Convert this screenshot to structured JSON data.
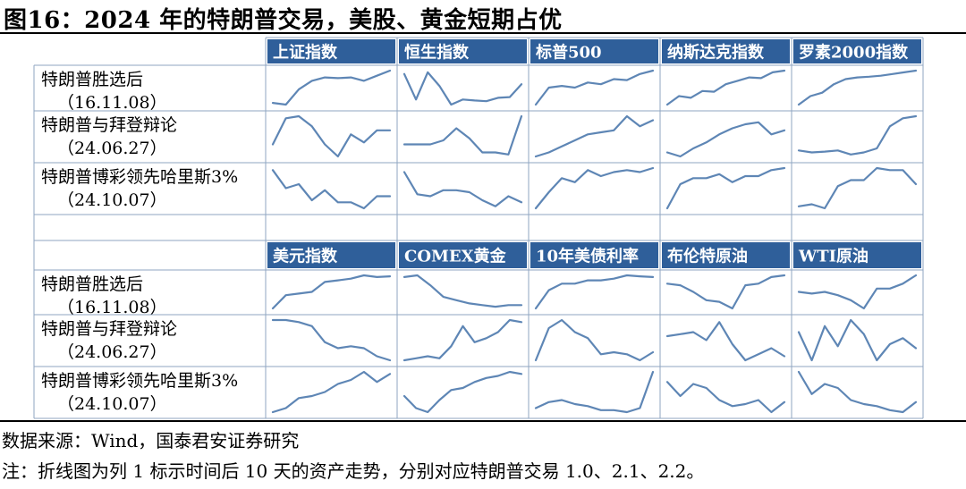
{
  "title": "图16：2024 年的特朗普交易，美股、黄金短期占优",
  "source": "数据来源：Wind，国泰君安证券研究",
  "note": "注：折线图为列 1 标示时间后 10 天的资产走势，分别对应特朗普交易 1.0、2.1、2.2。",
  "colors": {
    "header_bg": "#2f5f9a",
    "header_text": "#ffffff",
    "line": "#5e86b5",
    "grid": "#8fa6c2"
  },
  "panels": [
    {
      "assets": [
        "上证指数",
        "恒生指数",
        "标普500",
        "纳斯达克指数",
        "罗素2000指数"
      ],
      "rows": [
        {
          "event": "特朗普胜选后",
          "date": "（16.11.08）"
        },
        {
          "event": "特朗普与拜登辩论",
          "date": "（24.06.27）"
        },
        {
          "event": "特朗普博彩领先哈里斯3%",
          "date": "（24.10.07）"
        }
      ]
    },
    {
      "assets": [
        "美元指数",
        "COMEX黄金",
        "10年美债利率",
        "布伦特原油",
        "WTI原油"
      ],
      "rows": [
        {
          "event": "特朗普胜选后",
          "date": "（16.11.08）"
        },
        {
          "event": "特朗普与拜登辩论",
          "date": "（24.06.27）"
        },
        {
          "event": "特朗普博彩领先哈里斯3%",
          "date": "（24.10.07）"
        }
      ]
    }
  ],
  "chart_data": {
    "type": "line",
    "description_x": "trading day after event (10 days)",
    "units": "normalized asset level (0 = period low, 1 = period high)",
    "sparklines": [
      [
        [
          [
            0.05,
            0.0,
            0.45,
            0.7,
            0.8,
            0.78,
            0.8,
            0.7,
            0.85,
            1.0
          ],
          [
            0.9,
            0.15,
            0.95,
            0.55,
            0.0,
            0.15,
            0.12,
            0.1,
            0.2,
            0.22,
            0.6
          ],
          [
            0.0,
            0.5,
            0.55,
            0.5,
            0.65,
            0.6,
            0.75,
            0.72,
            0.9,
            1.0
          ],
          [
            0.0,
            0.25,
            0.2,
            0.4,
            0.38,
            0.6,
            0.7,
            0.8,
            0.78,
            0.95,
            1.0
          ],
          [
            0.0,
            0.25,
            0.35,
            0.6,
            0.75,
            0.8,
            0.82,
            0.85,
            0.9,
            0.95,
            1.0
          ]
        ],
        [
          [
            0.3,
            0.95,
            1.0,
            0.75,
            0.3,
            0.0,
            0.55,
            0.35,
            0.65,
            0.65
          ],
          [
            0.3,
            0.3,
            0.3,
            0.4,
            0.7,
            0.45,
            0.1,
            0.1,
            0.05,
            1.0
          ],
          [
            0.0,
            0.1,
            0.25,
            0.4,
            0.55,
            0.6,
            0.65,
            1.0,
            0.75,
            0.9
          ],
          [
            0.1,
            0.0,
            0.2,
            0.35,
            0.55,
            0.7,
            0.8,
            0.85,
            0.55,
            0.65
          ],
          [
            0.15,
            0.1,
            0.12,
            0.15,
            0.05,
            0.1,
            0.2,
            0.75,
            0.95,
            1.0
          ]
        ],
        [
          [
            0.95,
            0.5,
            0.6,
            0.2,
            0.45,
            0.15,
            0.15,
            0.0,
            0.3,
            0.3
          ],
          [
            0.9,
            0.35,
            0.3,
            0.45,
            0.45,
            0.4,
            0.2,
            0.05,
            0.3,
            0.15
          ],
          [
            0.0,
            0.4,
            0.75,
            0.65,
            0.95,
            0.8,
            0.9,
            0.95,
            0.9,
            1.0
          ],
          [
            0.0,
            0.6,
            0.75,
            0.75,
            0.85,
            0.65,
            0.8,
            0.8,
            0.95,
            1.0
          ],
          [
            0.05,
            0.1,
            0.0,
            0.55,
            0.7,
            0.7,
            1.0,
            0.95,
            0.95,
            0.6
          ]
        ]
      ],
      [
        [
          [
            0.0,
            0.4,
            0.45,
            0.5,
            0.8,
            0.85,
            0.9,
            1.0,
            0.95,
            0.97
          ],
          [
            0.95,
            1.0,
            0.7,
            0.35,
            0.25,
            0.15,
            0.1,
            0.05,
            0.1,
            0.1
          ],
          [
            0.0,
            0.55,
            0.75,
            0.75,
            0.85,
            0.85,
            0.9,
            1.0,
            0.97,
            0.95
          ],
          [
            0.75,
            0.7,
            0.5,
            0.25,
            0.2,
            0.0,
            0.7,
            0.75,
            0.95,
            1.0
          ],
          [
            0.5,
            0.45,
            0.5,
            0.4,
            0.25,
            0.0,
            0.6,
            0.6,
            0.75,
            1.0
          ]
        ],
        [
          [
            1.0,
            1.0,
            0.95,
            0.85,
            0.45,
            0.3,
            0.35,
            0.3,
            0.1,
            0.0
          ],
          [
            0.0,
            0.05,
            0.1,
            0.05,
            0.35,
            0.85,
            0.45,
            0.55,
            0.7,
            1.0,
            0.95
          ],
          [
            0.0,
            0.8,
            1.0,
            0.7,
            0.55,
            0.15,
            0.2,
            0.15,
            0.0,
            0.2
          ],
          [
            0.6,
            0.65,
            0.7,
            0.5,
            0.95,
            0.4,
            0.0,
            0.15,
            0.3,
            0.1
          ],
          [
            0.7,
            0.0,
            0.85,
            0.35,
            1.0,
            0.65,
            0.0,
            0.4,
            0.55,
            0.3
          ]
        ],
        [
          [
            0.0,
            0.1,
            0.35,
            0.4,
            0.5,
            0.7,
            0.8,
            1.0,
            0.75,
            0.95
          ],
          [
            0.4,
            0.1,
            0.0,
            0.3,
            0.55,
            0.6,
            0.75,
            0.85,
            0.9,
            1.0,
            0.95
          ],
          [
            0.1,
            0.25,
            0.3,
            0.2,
            0.15,
            0.05,
            0.05,
            0.0,
            0.1,
            1.0
          ],
          [
            0.75,
            0.4,
            0.7,
            0.6,
            0.3,
            0.15,
            0.2,
            0.3,
            0.0,
            0.25
          ],
          [
            1.0,
            0.45,
            0.7,
            0.6,
            0.3,
            0.2,
            0.15,
            0.05,
            0.0,
            0.25
          ]
        ]
      ]
    ]
  }
}
